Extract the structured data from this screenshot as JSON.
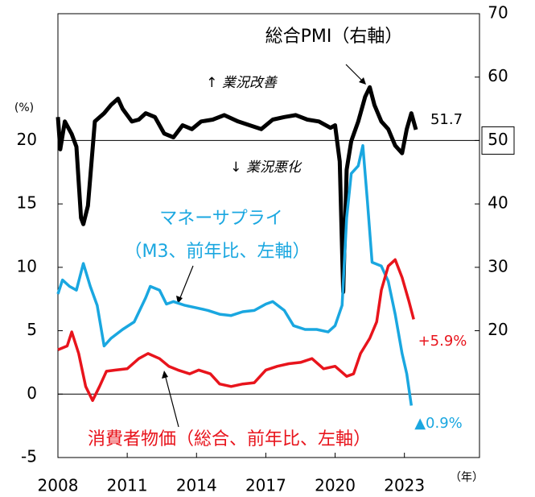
{
  "chart_data": {
    "type": "line",
    "annotations": [
      "総合PMI（右軸）",
      "↑ 業況改善",
      "↓ 業況悪化",
      "マネーサプライ",
      "（M3、前年比、左軸）",
      "消費者物価（総合、前年比、左軸）",
      "51.7",
      "+5.9%",
      "▲0.9%"
    ],
    "y_unit": "(%)",
    "x_unit": "（年）",
    "xlim": [
      2008,
      2026.25
    ],
    "xticks": [
      2008,
      2011,
      2014,
      2017,
      2020,
      2023
    ],
    "ylim": [
      -5,
      30
    ],
    "yticks": [
      -5,
      0,
      5,
      10,
      15,
      20
    ],
    "y2lim": [
      0,
      70
    ],
    "y2ticks": [
      20,
      30,
      40,
      50,
      60,
      70
    ],
    "reference_lines": [
      0,
      20
    ],
    "series": [
      {
        "name": "総合PMI",
        "color": "#000000",
        "axis": "y2",
        "x": [
          2008.0,
          2008.1,
          2008.3,
          2008.6,
          2008.8,
          2009.0,
          2009.1,
          2009.3,
          2009.6,
          2010.0,
          2010.3,
          2010.6,
          2010.8,
          2011.2,
          2011.5,
          2011.8,
          2012.2,
          2012.6,
          2013.0,
          2013.4,
          2013.8,
          2014.2,
          2014.7,
          2015.2,
          2015.8,
          2016.3,
          2016.8,
          2017.3,
          2017.8,
          2018.3,
          2018.8,
          2019.3,
          2019.8,
          2020.0,
          2020.2,
          2020.35,
          2020.5,
          2020.7,
          2021.0,
          2021.3,
          2021.5,
          2021.7,
          2022.0,
          2022.3,
          2022.6,
          2022.9,
          2023.1,
          2023.3,
          2023.5
        ],
        "values": [
          53.7,
          48.6,
          53,
          51,
          49,
          37.8,
          36.8,
          39.7,
          53,
          54.3,
          55.6,
          56.6,
          55,
          53,
          53.3,
          54.3,
          53.7,
          51.1,
          50.5,
          52.4,
          51.8,
          53,
          53.3,
          54,
          53,
          52.4,
          51.8,
          53.3,
          53.7,
          54,
          53.3,
          53,
          52,
          52.4,
          46.7,
          26.1,
          45.4,
          49.9,
          53,
          56.9,
          58.4,
          55.6,
          53,
          51.8,
          49.2,
          48,
          51.8,
          54.3,
          51.7
        ]
      },
      {
        "name": "マネーサプライ",
        "color": "#1aa7e0",
        "x": [
          2008.0,
          2008.2,
          2008.5,
          2008.8,
          2009.1,
          2009.4,
          2009.7,
          2010.0,
          2010.3,
          2010.8,
          2011.3,
          2011.8,
          2012.0,
          2012.4,
          2012.7,
          2013.0,
          2013.5,
          2014.0,
          2014.5,
          2015.0,
          2015.5,
          2016.0,
          2016.5,
          2017.0,
          2017.3,
          2017.8,
          2018.2,
          2018.7,
          2019.2,
          2019.7,
          2020.0,
          2020.3,
          2020.5,
          2020.7,
          2021.0,
          2021.2,
          2021.4,
          2021.6,
          2022.0,
          2022.3,
          2022.6,
          2022.9,
          2023.1,
          2023.3
        ],
        "values": [
          7.9,
          9,
          8.5,
          8.2,
          10.3,
          8.5,
          7,
          3.8,
          4.4,
          5.1,
          5.7,
          7.6,
          8.5,
          8.2,
          7.1,
          7.3,
          7,
          6.8,
          6.6,
          6.3,
          6.2,
          6.5,
          6.6,
          7.1,
          7.3,
          6.6,
          5.4,
          5.1,
          5.1,
          4.9,
          5.4,
          7,
          13.9,
          17.4,
          18,
          19.6,
          15.2,
          10.4,
          10.1,
          8.9,
          6.3,
          3.2,
          1.6,
          -0.9
        ]
      },
      {
        "name": "消費者物価",
        "color": "#e8141c",
        "x": [
          2008.0,
          2008.4,
          2008.6,
          2008.9,
          2009.2,
          2009.5,
          2009.8,
          2010.1,
          2010.5,
          2011.0,
          2011.5,
          2011.9,
          2012.4,
          2012.8,
          2013.2,
          2013.7,
          2014.1,
          2014.6,
          2015.0,
          2015.5,
          2016.0,
          2016.5,
          2017.0,
          2017.5,
          2018.0,
          2018.5,
          2019.0,
          2019.5,
          2020.0,
          2020.5,
          2020.8,
          2021.1,
          2021.5,
          2021.8,
          2022.0,
          2022.3,
          2022.6,
          2022.9,
          2023.2,
          2023.4
        ],
        "values": [
          3.5,
          3.8,
          4.9,
          3.2,
          0.6,
          -0.5,
          0.6,
          1.8,
          1.9,
          2,
          2.8,
          3.2,
          2.8,
          2.2,
          1.9,
          1.6,
          1.9,
          1.6,
          0.8,
          0.6,
          0.8,
          0.9,
          1.9,
          2.2,
          2.4,
          2.5,
          2.8,
          2,
          2.2,
          1.4,
          1.6,
          3.2,
          4.4,
          5.7,
          8.2,
          10.1,
          10.6,
          9.2,
          7.3,
          5.9
        ]
      }
    ]
  }
}
